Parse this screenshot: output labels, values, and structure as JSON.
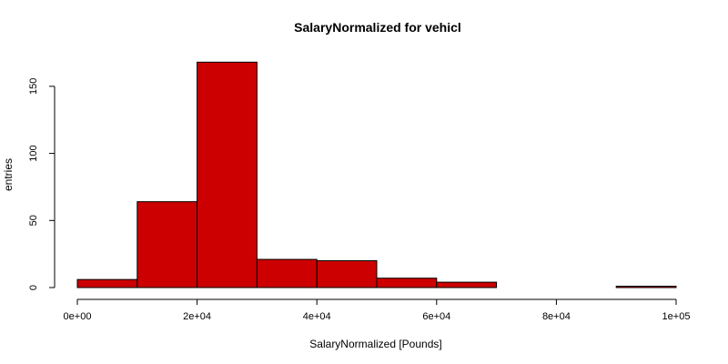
{
  "chart_data": {
    "type": "bar",
    "subtype": "histogram",
    "title": "SalaryNormalized for vehicl",
    "xlabel": "SalaryNormalized [Pounds]",
    "ylabel": "entries",
    "bin_edges": [
      0,
      10000,
      20000,
      30000,
      40000,
      50000,
      60000,
      70000,
      80000,
      90000,
      100000
    ],
    "values": [
      6,
      64,
      168,
      21,
      20,
      7,
      4,
      0,
      0,
      1
    ],
    "xlim": [
      0,
      100000
    ],
    "ylim": [
      0,
      175
    ],
    "x_ticks": [
      0,
      20000,
      40000,
      60000,
      80000,
      100000
    ],
    "x_tick_labels": [
      "0e+00",
      "2e+04",
      "4e+04",
      "6e+04",
      "8e+04",
      "1e+05"
    ],
    "y_ticks": [
      0,
      50,
      100,
      150
    ],
    "y_tick_labels": [
      "0",
      "50",
      "100",
      "150"
    ],
    "bar_color": "#cc0000",
    "grid": false,
    "legend": "none"
  }
}
